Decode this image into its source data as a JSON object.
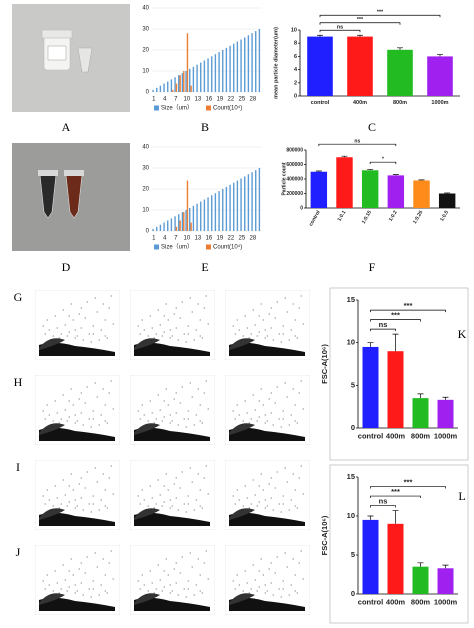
{
  "panel_labels": [
    "A",
    "B",
    "C",
    "D",
    "E",
    "F",
    "G",
    "H",
    "I",
    "J",
    "K",
    "L"
  ],
  "chart_data": [
    {
      "type": "bar",
      "categories": [
        "1",
        null,
        null,
        "4",
        null,
        null,
        "7",
        null,
        null,
        "10",
        null,
        null,
        "13",
        null,
        null,
        "16",
        null,
        null,
        "19",
        null,
        null,
        "22",
        null,
        null,
        "25",
        null,
        null,
        "28",
        null,
        null
      ],
      "series": [
        {
          "name": "Size（um）",
          "color": "#5b9bd5",
          "values": [
            1,
            2,
            3,
            4,
            5,
            6,
            7,
            8,
            9,
            10,
            11,
            12,
            13,
            14,
            15,
            16,
            17,
            18,
            19,
            20,
            21,
            22,
            23,
            24,
            25,
            26,
            27,
            28,
            29,
            30
          ]
        },
        {
          "name": "Count(10⁴)",
          "color": "#ed7d31",
          "values": [
            0,
            0,
            0,
            0,
            0,
            1,
            4,
            8,
            10,
            28,
            3,
            0,
            0,
            0,
            0,
            0,
            0,
            0,
            0,
            0,
            0,
            0,
            0,
            0,
            0,
            0,
            0,
            0,
            0,
            0
          ]
        }
      ],
      "ylim": [
        0,
        40
      ],
      "yticks": [
        0,
        10,
        20,
        30,
        40
      ],
      "grid": true
    },
    {
      "type": "bar",
      "ylabel": "mean particle diameter(um)",
      "categories": [
        "control",
        "400m",
        "800m",
        "1000m"
      ],
      "values": [
        9,
        9,
        7,
        6
      ],
      "errors": [
        0.2,
        0.2,
        0.3,
        0.3
      ],
      "colors": [
        "#1f1fff",
        "#ff1a1a",
        "#22bb22",
        "#a020f0"
      ],
      "annotations": [
        "ns",
        "***",
        "***"
      ],
      "ylim": [
        0,
        10
      ],
      "yticks": [
        0,
        2,
        4,
        6,
        8,
        10
      ],
      "grid": false
    },
    {
      "type": "bar",
      "categories": [
        "1",
        null,
        null,
        "4",
        null,
        null,
        "7",
        null,
        null,
        "10",
        null,
        null,
        "13",
        null,
        null,
        "16",
        null,
        null,
        "19",
        null,
        null,
        "22",
        null,
        null,
        "25",
        null,
        null,
        "28",
        null,
        null
      ],
      "series": [
        {
          "name": "Size（um）",
          "color": "#5b9bd5",
          "values": [
            1,
            2,
            3,
            4,
            5,
            6,
            7,
            8,
            9,
            10,
            11,
            12,
            13,
            14,
            15,
            16,
            17,
            18,
            19,
            20,
            21,
            22,
            23,
            24,
            25,
            26,
            27,
            28,
            29,
            30
          ]
        },
        {
          "name": "Count(10⁴)",
          "color": "#ed7d31",
          "values": [
            0,
            0,
            0,
            0,
            0,
            0,
            2,
            5,
            9,
            24,
            4,
            0,
            0,
            0,
            0,
            0,
            0,
            0,
            0,
            0,
            0,
            0,
            0,
            0,
            0,
            0,
            0,
            0,
            0,
            0
          ]
        }
      ],
      "ylim": [
        0,
        40
      ],
      "yticks": [
        0,
        10,
        20,
        30,
        40
      ],
      "grid": true
    },
    {
      "type": "bar",
      "ylabel": "Particle count",
      "categories": [
        "control",
        "1:0.1",
        "1:0.15",
        "1:0.2",
        "1:0.25",
        "1:0.5"
      ],
      "values": [
        500000,
        700000,
        520000,
        450000,
        380000,
        200000
      ],
      "errors": [
        10000,
        15000,
        12000,
        10000,
        8000,
        8000
      ],
      "colors": [
        "#1f1fff",
        "#ff1a1a",
        "#22bb22",
        "#a020f0",
        "#ff8c1a",
        "#111111"
      ],
      "annotations": [
        "ns",
        "*"
      ],
      "ylim": [
        0,
        800000
      ],
      "yticks": [
        0,
        200000,
        400000,
        600000,
        800000
      ],
      "grid": false
    },
    {
      "type": "bar",
      "ylabel": "FSC-A(10⁶)",
      "categories": [
        "control",
        "400m",
        "800m",
        "1000m"
      ],
      "values": [
        9.5,
        9,
        3.5,
        3.3
      ],
      "errors": [
        0.5,
        2,
        0.5,
        0.3
      ],
      "colors": [
        "#1f1fff",
        "#ff1a1a",
        "#22bb22",
        "#a020f0"
      ],
      "annotations": [
        "ns",
        "***",
        "***"
      ],
      "ylim": [
        0,
        15
      ],
      "yticks": [
        0,
        5,
        10,
        15
      ],
      "grid": false
    },
    {
      "type": "bar",
      "ylabel": "FSC-A(10⁶)",
      "categories": [
        "control",
        "400m",
        "800m",
        "1000m"
      ],
      "values": [
        9.5,
        9,
        3.5,
        3.3
      ],
      "errors": [
        0.5,
        1.7,
        0.5,
        0.4
      ],
      "colors": [
        "#1f1fff",
        "#ff1a1a",
        "#22bb22",
        "#a020f0"
      ],
      "annotations": [
        "ns",
        "***",
        "***"
      ],
      "ylim": [
        0,
        15
      ],
      "yticks": [
        0,
        5,
        10,
        15
      ],
      "grid": false
    }
  ]
}
